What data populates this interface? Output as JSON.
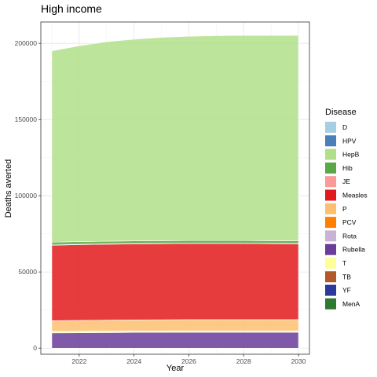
{
  "chart_data": {
    "type": "area",
    "stacked": true,
    "title": "High income",
    "xlabel": "Year",
    "ylabel": "Deaths averted",
    "xlim": [
      2020.6,
      2030.4
    ],
    "ylim": [
      -4000,
      214000
    ],
    "x_ticks": [
      2022,
      2024,
      2026,
      2028,
      2030
    ],
    "x_tick_labels": [
      "2022",
      "2024",
      "2026",
      "2028",
      "2030"
    ],
    "y_ticks": [
      0,
      50000,
      100000,
      150000,
      200000
    ],
    "y_tick_labels": [
      "0",
      "50000",
      "100000",
      "150000",
      "200000"
    ],
    "grid": true,
    "legend": {
      "title": "Disease",
      "position": "right",
      "entries": [
        {
          "name": "D",
          "color": "#a6cee3"
        },
        {
          "name": "HPV",
          "color": "#4a7fb8"
        },
        {
          "name": "HepB",
          "color": "#b2df8a"
        },
        {
          "name": "Hib",
          "color": "#5aa845"
        },
        {
          "name": "JE",
          "color": "#fb9a99"
        },
        {
          "name": "Measles",
          "color": "#e31a1c"
        },
        {
          "name": "P",
          "color": "#fdbf6f"
        },
        {
          "name": "PCV",
          "color": "#ff7f00"
        },
        {
          "name": "Rota",
          "color": "#cab2d6"
        },
        {
          "name": "Rubella",
          "color": "#6a3d9a"
        },
        {
          "name": "T",
          "color": "#ffff99"
        },
        {
          "name": "TB",
          "color": "#b15928"
        },
        {
          "name": "YF",
          "color": "#2b3a9a"
        },
        {
          "name": "MenA",
          "color": "#2e7a32"
        }
      ]
    },
    "x": [
      2021,
      2022,
      2023,
      2024,
      2025,
      2026,
      2027,
      2028,
      2029,
      2030
    ],
    "stack_order_bottom_to_top": [
      "Rubella",
      "T",
      "P",
      "Measles",
      "JE",
      "Hib",
      "HepB"
    ],
    "series": [
      {
        "name": "Rubella",
        "color": "#6a3d9a",
        "values": [
          10000,
          10100,
          10200,
          10300,
          10300,
          10400,
          10400,
          10400,
          10400,
          10400
        ]
      },
      {
        "name": "T",
        "color": "#ffff99",
        "values": [
          1000,
          1000,
          1000,
          1000,
          1000,
          1000,
          1000,
          1000,
          1000,
          1000
        ]
      },
      {
        "name": "P",
        "color": "#fdbf6f",
        "values": [
          7000,
          7100,
          7200,
          7200,
          7300,
          7300,
          7300,
          7300,
          7300,
          7300
        ]
      },
      {
        "name": "Measles",
        "color": "#e31a1c",
        "values": [
          49500,
          49700,
          49800,
          49900,
          49900,
          49900,
          49900,
          49900,
          49800,
          49700
        ]
      },
      {
        "name": "JE",
        "color": "#fb9a99",
        "values": [
          200,
          200,
          200,
          200,
          200,
          200,
          200,
          200,
          200,
          200
        ]
      },
      {
        "name": "Hib",
        "color": "#5aa845",
        "values": [
          1800,
          1800,
          1800,
          1800,
          1800,
          1800,
          1800,
          1800,
          1800,
          1800
        ]
      },
      {
        "name": "HepB",
        "color": "#b2df8a",
        "values": [
          125500,
          128500,
          130800,
          132300,
          133400,
          134000,
          134400,
          134600,
          134700,
          134800
        ]
      }
    ]
  }
}
